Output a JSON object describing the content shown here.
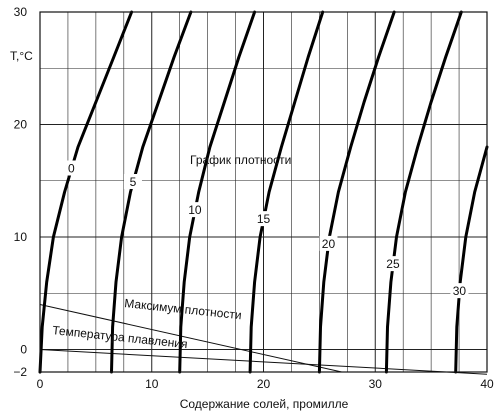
{
  "chart_data": {
    "type": "line",
    "title": "",
    "xlabel": "Содержание солей, промилле",
    "ylabel": "T,°C",
    "xlim": [
      0,
      40
    ],
    "ylim": [
      -2,
      30
    ],
    "x_ticks": [
      "0",
      "10",
      "20",
      "30",
      "40"
    ],
    "y_ticks": [
      {
        "value": -2,
        "label": "−2"
      },
      {
        "value": 0,
        "label": "0"
      },
      {
        "value": 10,
        "label": "10"
      },
      {
        "value": 20,
        "label": "20"
      },
      {
        "value": 30,
        "label": "30"
      }
    ],
    "grid": true,
    "family_label": "График плотности",
    "density_curves": [
      {
        "label": "0",
        "points": [
          [
            0.0,
            -2
          ],
          [
            0.2,
            2
          ],
          [
            0.6,
            6
          ],
          [
            1.2,
            10
          ],
          [
            2.2,
            14
          ],
          [
            3.4,
            18
          ],
          [
            5.0,
            22
          ],
          [
            6.6,
            26
          ],
          [
            8.2,
            30
          ]
        ]
      },
      {
        "label": "5",
        "points": [
          [
            6.4,
            -2
          ],
          [
            6.5,
            2
          ],
          [
            6.8,
            6
          ],
          [
            7.3,
            10
          ],
          [
            8.1,
            14
          ],
          [
            9.2,
            18
          ],
          [
            10.6,
            22
          ],
          [
            12.0,
            26
          ],
          [
            13.5,
            30
          ]
        ]
      },
      {
        "label": "10",
        "points": [
          [
            12.5,
            -2
          ],
          [
            12.6,
            2
          ],
          [
            12.9,
            6
          ],
          [
            13.4,
            10
          ],
          [
            14.2,
            14
          ],
          [
            15.2,
            18
          ],
          [
            16.5,
            22
          ],
          [
            17.8,
            26
          ],
          [
            19.2,
            30
          ]
        ]
      },
      {
        "label": "15",
        "points": [
          [
            18.8,
            -2
          ],
          [
            18.9,
            2
          ],
          [
            19.2,
            6
          ],
          [
            19.7,
            10
          ],
          [
            20.5,
            14
          ],
          [
            21.6,
            18
          ],
          [
            22.8,
            22
          ],
          [
            24.0,
            26
          ],
          [
            25.3,
            30
          ]
        ]
      },
      {
        "label": "20",
        "points": [
          [
            25.0,
            -2
          ],
          [
            25.1,
            2
          ],
          [
            25.4,
            6
          ],
          [
            25.9,
            10
          ],
          [
            26.7,
            14
          ],
          [
            27.8,
            18
          ],
          [
            29.0,
            22
          ],
          [
            30.3,
            26
          ],
          [
            31.7,
            30
          ]
        ]
      },
      {
        "label": "25",
        "points": [
          [
            31.0,
            -2
          ],
          [
            31.1,
            2
          ],
          [
            31.4,
            6
          ],
          [
            31.9,
            10
          ],
          [
            32.7,
            14
          ],
          [
            33.8,
            18
          ],
          [
            35.0,
            22
          ],
          [
            36.3,
            26
          ],
          [
            37.7,
            30
          ]
        ]
      },
      {
        "label": "30",
        "points": [
          [
            37.2,
            -2
          ],
          [
            37.3,
            2
          ],
          [
            37.6,
            6
          ],
          [
            38.1,
            10
          ],
          [
            38.9,
            14
          ],
          [
            40.0,
            18
          ]
        ]
      }
    ],
    "reference_lines": [
      {
        "name": "Максимум плотности",
        "points": [
          [
            0,
            4.0
          ],
          [
            27.0,
            -2
          ]
        ]
      },
      {
        "name": "Температура плавления",
        "points": [
          [
            0,
            0.0
          ],
          [
            40,
            -2.2
          ]
        ]
      }
    ]
  }
}
